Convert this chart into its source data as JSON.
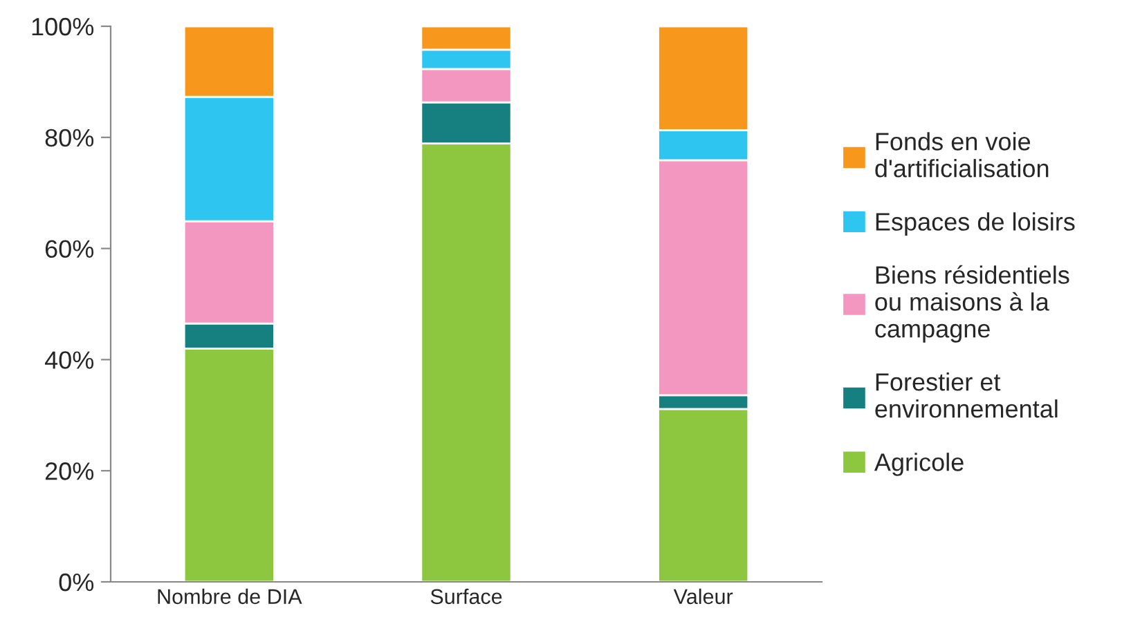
{
  "chart_data": {
    "type": "bar",
    "stacked": true,
    "categories": [
      "Nombre de DIA",
      "Surface",
      "Valeur"
    ],
    "series": [
      {
        "name": "Agricole",
        "color": "#8dc63f",
        "values": [
          42.0,
          78.9,
          31.1
        ]
      },
      {
        "name": "Forestier et\nenvironnemental",
        "color": "#168080",
        "values": [
          4.5,
          7.4,
          2.5
        ]
      },
      {
        "name": "Biens résidentiels\nou maisons à la\ncampagne",
        "color": "#f397c0",
        "values": [
          18.4,
          6.0,
          42.3
        ]
      },
      {
        "name": "Espaces de loisirs",
        "color": "#2ec5f0",
        "values": [
          22.4,
          3.5,
          5.4
        ]
      },
      {
        "name": "Fonds en voie\nd'artificialisation",
        "color": "#f7981d",
        "values": [
          12.7,
          4.2,
          18.7
        ]
      }
    ],
    "ylim": [
      0,
      100
    ],
    "yticks": [
      {
        "value": 0,
        "label": "0%"
      },
      {
        "value": 20,
        "label": "20%"
      },
      {
        "value": 40,
        "label": "40%"
      },
      {
        "value": 60,
        "label": "60%"
      },
      {
        "value": 80,
        "label": "80%"
      },
      {
        "value": 100,
        "label": "100%"
      }
    ],
    "grid": false,
    "legend": "right"
  }
}
